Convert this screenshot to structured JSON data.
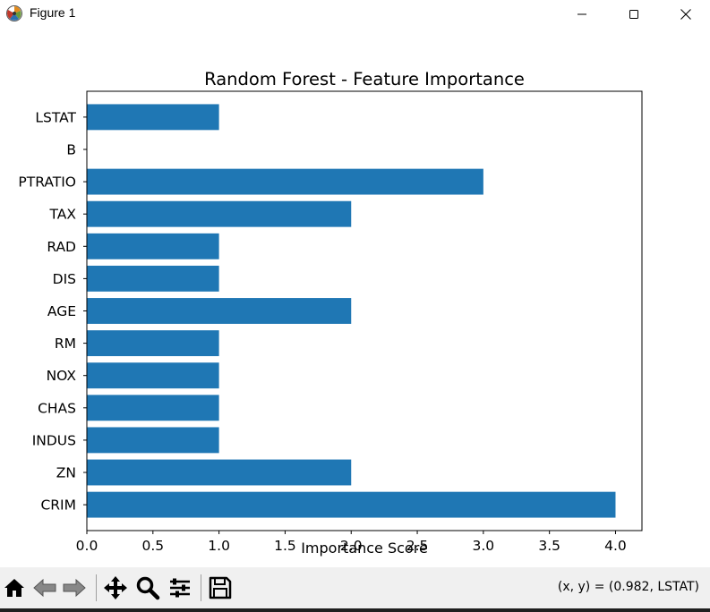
{
  "window": {
    "title": "Figure 1",
    "icon": "matplotlib-logo-icon"
  },
  "toolbar": {
    "buttons": [
      "home-icon",
      "back-arrow-icon",
      "forward-arrow-icon",
      "pan-move-icon",
      "zoom-magnifier-icon",
      "configure-subplots-icon",
      "save-floppy-icon"
    ],
    "coords_text": "(x, y) = (0.982, LSTAT)"
  },
  "colors": {
    "bar": "#1f77b4",
    "toolbar_bg": "#f0f0f0"
  },
  "chart_data": {
    "type": "bar",
    "orientation": "horizontal",
    "title": "Random Forest - Feature Importance",
    "xlabel": "Importance Score",
    "ylabel": "",
    "categories": [
      "CRIM",
      "ZN",
      "INDUS",
      "CHAS",
      "NOX",
      "RM",
      "AGE",
      "DIS",
      "RAD",
      "TAX",
      "PTRATIO",
      "B",
      "LSTAT"
    ],
    "values": [
      4,
      2,
      1,
      1,
      1,
      1,
      2,
      1,
      1,
      2,
      3,
      0,
      1
    ],
    "xlim": [
      0,
      4.2
    ],
    "xticks": [
      "0.0",
      "0.5",
      "1.0",
      "1.5",
      "2.0",
      "2.5",
      "3.0",
      "3.5",
      "4.0"
    ],
    "grid": false,
    "legend": "none"
  }
}
